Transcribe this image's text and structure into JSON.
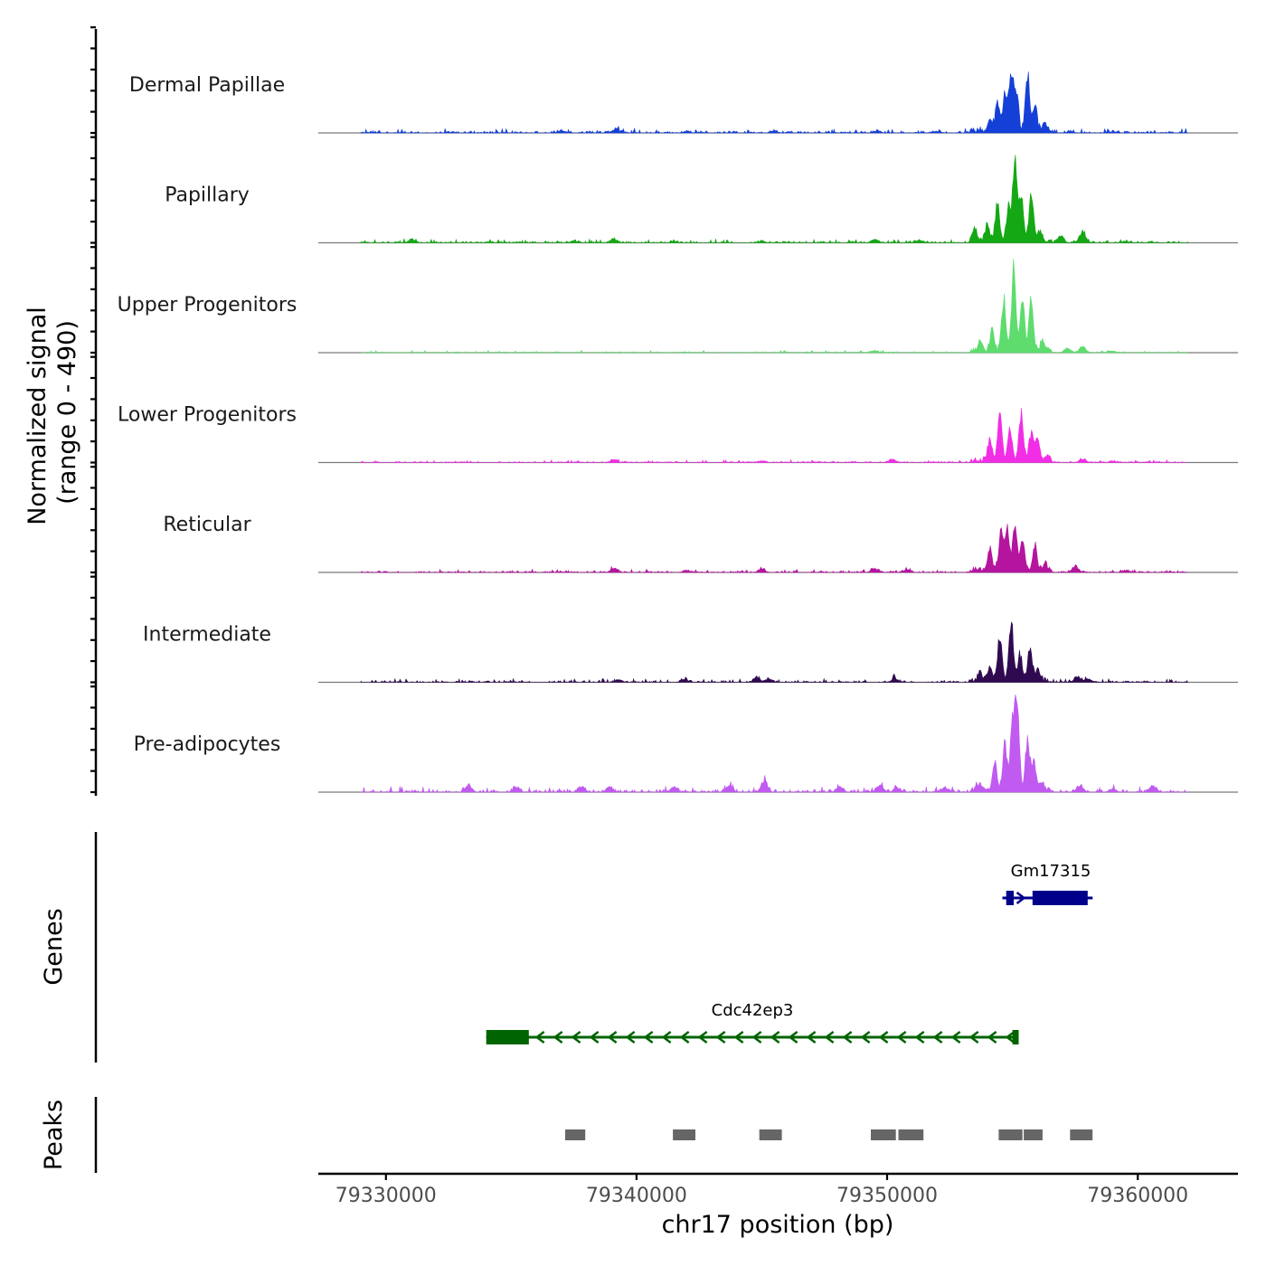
{
  "chart_data": {
    "type": "area",
    "ylabel": "Normalized signal",
    "ylabel_range": "(range 0 - 490)",
    "xlabel": "chr17 position (bp)",
    "xlim": [
      79327300,
      79364000
    ],
    "ylim": [
      0,
      490
    ],
    "x_ticks": [
      79330000,
      79340000,
      79350000,
      79360000
    ],
    "x_tick_labels": [
      "79330000",
      "79340000",
      "79350000",
      "79360000"
    ],
    "signal_extent": [
      79329000,
      79362000
    ],
    "tracks": [
      {
        "name": "Dermal Papillae",
        "color": "#1440d8",
        "background": 12,
        "minor_peaks": [
          [
            79337000,
            14
          ],
          [
            79339200,
            25
          ],
          [
            79342000,
            10
          ],
          [
            79345500,
            12
          ],
          [
            79349600,
            14
          ],
          [
            79352000,
            10
          ],
          [
            79357300,
            10
          ],
          [
            79359000,
            8
          ]
        ],
        "major_peaks": [
          [
            79354100,
            70
          ],
          [
            79354400,
            160
          ],
          [
            79354700,
            210
          ],
          [
            79354950,
            330
          ],
          [
            79355150,
            220
          ],
          [
            79355600,
            320
          ],
          [
            79355900,
            150
          ],
          [
            79356300,
            40
          ]
        ]
      },
      {
        "name": "Papillary",
        "color": "#14a814",
        "background": 10,
        "minor_peaks": [
          [
            79331000,
            18
          ],
          [
            79337500,
            12
          ],
          [
            79339100,
            20
          ],
          [
            79341500,
            10
          ],
          [
            79345000,
            10
          ],
          [
            79349500,
            22
          ],
          [
            79351300,
            16
          ],
          [
            79356900,
            40
          ],
          [
            79357800,
            65
          ],
          [
            79359500,
            10
          ]
        ],
        "major_peaks": [
          [
            79353500,
            70
          ],
          [
            79354000,
            100
          ],
          [
            79354400,
            220
          ],
          [
            79354850,
            200
          ],
          [
            79355100,
            470
          ],
          [
            79355350,
            260
          ],
          [
            79355750,
            260
          ],
          [
            79356100,
            60
          ]
        ]
      },
      {
        "name": "Upper Progenitors",
        "color": "#5edc6e",
        "background": 6,
        "minor_peaks": [
          [
            79349500,
            12
          ],
          [
            79357200,
            25
          ],
          [
            79357800,
            35
          ],
          [
            79359000,
            10
          ]
        ],
        "major_peaks": [
          [
            79353700,
            50
          ],
          [
            79354200,
            120
          ],
          [
            79354650,
            300
          ],
          [
            79355050,
            460
          ],
          [
            79355400,
            300
          ],
          [
            79355750,
            300
          ],
          [
            79356200,
            60
          ]
        ]
      },
      {
        "name": "Lower Progenitors",
        "color": "#f22de6",
        "background": 7,
        "minor_peaks": [
          [
            79339100,
            18
          ],
          [
            79345000,
            10
          ],
          [
            79350200,
            20
          ],
          [
            79357800,
            22
          ],
          [
            79359000,
            8
          ]
        ],
        "major_peaks": [
          [
            79354100,
            120
          ],
          [
            79354500,
            290
          ],
          [
            79354900,
            170
          ],
          [
            79355350,
            260
          ],
          [
            79355750,
            160
          ],
          [
            79356000,
            130
          ],
          [
            79356400,
            40
          ]
        ]
      },
      {
        "name": "Reticular",
        "color": "#b4149e",
        "background": 8,
        "minor_peaks": [
          [
            79339100,
            25
          ],
          [
            79342000,
            12
          ],
          [
            79345000,
            22
          ],
          [
            79349500,
            25
          ],
          [
            79350800,
            20
          ],
          [
            79357500,
            40
          ],
          [
            79359500,
            10
          ]
        ],
        "major_peaks": [
          [
            79354100,
            130
          ],
          [
            79354550,
            250
          ],
          [
            79354800,
            220
          ],
          [
            79355100,
            260
          ],
          [
            79355400,
            180
          ],
          [
            79355900,
            140
          ],
          [
            79356300,
            40
          ]
        ]
      },
      {
        "name": "Intermediate",
        "color": "#300a50",
        "background": 10,
        "minor_peaks": [
          [
            79339300,
            14
          ],
          [
            79341900,
            18
          ],
          [
            79344800,
            30
          ],
          [
            79345300,
            20
          ],
          [
            79350300,
            25
          ],
          [
            79357600,
            30
          ],
          [
            79358000,
            20
          ]
        ],
        "major_peaks": [
          [
            79353700,
            40
          ],
          [
            79354100,
            80
          ],
          [
            79354500,
            240
          ],
          [
            79354950,
            340
          ],
          [
            79355300,
            160
          ],
          [
            79355700,
            180
          ],
          [
            79356000,
            60
          ]
        ]
      },
      {
        "name": "Pre-adipocytes",
        "color": "#c05af0",
        "background": 16,
        "minor_peaks": [
          [
            79333300,
            40
          ],
          [
            79335200,
            30
          ],
          [
            79337800,
            38
          ],
          [
            79338900,
            30
          ],
          [
            79341500,
            32
          ],
          [
            79343700,
            40
          ],
          [
            79345100,
            70
          ],
          [
            79348100,
            32
          ],
          [
            79349700,
            40
          ],
          [
            79350400,
            28
          ],
          [
            79352300,
            30
          ],
          [
            79353700,
            30
          ],
          [
            79357700,
            35
          ],
          [
            79359000,
            25
          ],
          [
            79360600,
            40
          ]
        ],
        "major_peaks": [
          [
            79354300,
            150
          ],
          [
            79354700,
            260
          ],
          [
            79355000,
            380
          ],
          [
            79355180,
            490
          ],
          [
            79355600,
            280
          ],
          [
            79355850,
            180
          ],
          [
            79356200,
            50
          ]
        ]
      }
    ],
    "genes_label": "Genes",
    "genes": [
      {
        "name": "Gm17315",
        "color": "#00008b",
        "strand": "+",
        "start": 79354600,
        "end": 79358200,
        "exons": [
          [
            79354750,
            79355050
          ],
          [
            79355800,
            79358000
          ]
        ]
      },
      {
        "name": "Cdc42ep3",
        "color": "#006400",
        "strand": "-",
        "start": 79334000,
        "end": 79355250,
        "exons": [
          [
            79334000,
            79335700
          ],
          [
            79355000,
            79355250
          ]
        ]
      }
    ],
    "peaks_label": "Peaks",
    "peak_color": "#666666",
    "peaks": [
      [
        79337150,
        79337950
      ],
      [
        79341450,
        79342350
      ],
      [
        79344900,
        79345800
      ],
      [
        79349350,
        79350350
      ],
      [
        79350450,
        79351450
      ],
      [
        79354450,
        79355400
      ],
      [
        79355450,
        79356200
      ],
      [
        79357300,
        79358200
      ]
    ]
  }
}
